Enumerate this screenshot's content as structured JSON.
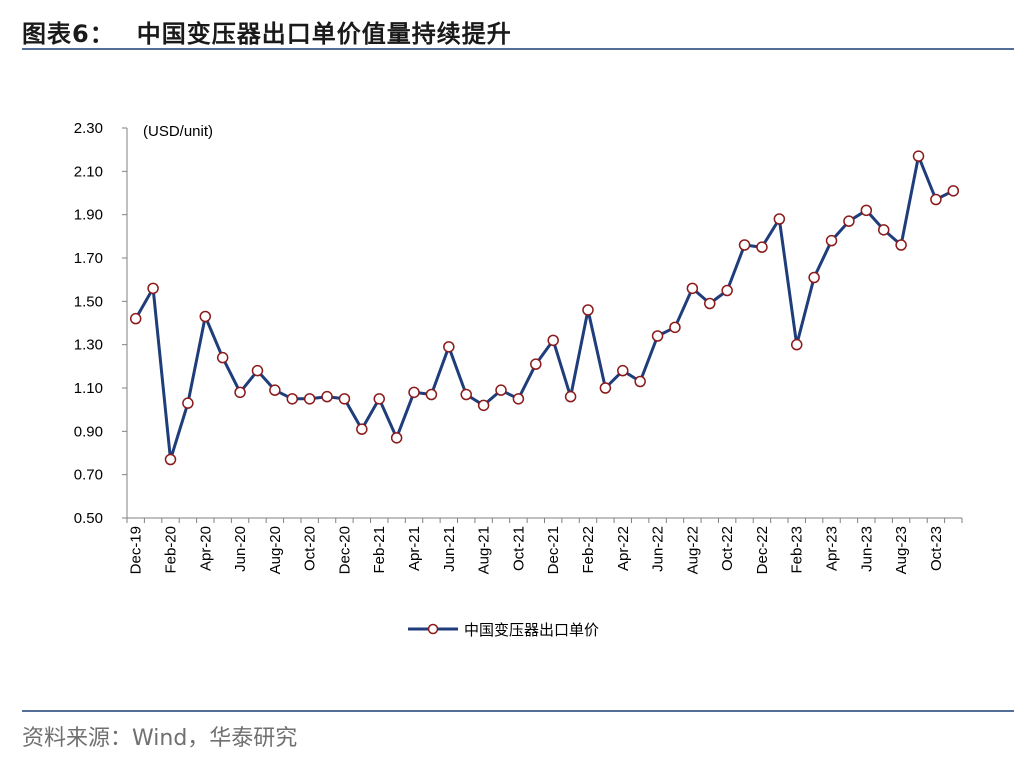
{
  "header": {
    "figure_label": "图表6：",
    "title": "中国变压器出口单价值量持续提升"
  },
  "source": "资料来源：Wind，华泰研究",
  "colors": {
    "line": "#1f3d7a",
    "marker_fill": "#ffffff",
    "marker_stroke": "#8b1a1a",
    "rule": "#556e97"
  },
  "chart_data": {
    "type": "line",
    "unit_label": "(USD/unit)",
    "ylim": [
      0.5,
      2.3
    ],
    "yticks": [
      "2.30",
      "2.10",
      "1.90",
      "1.70",
      "1.50",
      "1.30",
      "1.10",
      "0.90",
      "0.70",
      "0.50"
    ],
    "grid": false,
    "legend_position": "bottom",
    "x": [
      "Dec-19",
      "Jan-20",
      "Feb-20",
      "Mar-20",
      "Apr-20",
      "May-20",
      "Jun-20",
      "Jul-20",
      "Aug-20",
      "Sep-20",
      "Oct-20",
      "Nov-20",
      "Dec-20",
      "Jan-21",
      "Feb-21",
      "Mar-21",
      "Apr-21",
      "May-21",
      "Jun-21",
      "Jul-21",
      "Aug-21",
      "Sep-21",
      "Oct-21",
      "Nov-21",
      "Dec-21",
      "Jan-22",
      "Feb-22",
      "Mar-22",
      "Apr-22",
      "May-22",
      "Jun-22",
      "Jul-22",
      "Aug-22",
      "Sep-22",
      "Oct-22",
      "Nov-22",
      "Dec-22",
      "Jan-23",
      "Feb-23",
      "Mar-23",
      "Apr-23",
      "May-23",
      "Jun-23",
      "Jul-23",
      "Aug-23",
      "Sep-23",
      "Oct-23",
      "Nov-23"
    ],
    "xtick_labels": [
      "Dec-19",
      "Feb-20",
      "Apr-20",
      "Jun-20",
      "Aug-20",
      "Oct-20",
      "Dec-20",
      "Feb-21",
      "Apr-21",
      "Jun-21",
      "Aug-21",
      "Oct-21",
      "Dec-21",
      "Feb-22",
      "Apr-22",
      "Jun-22",
      "Aug-22",
      "Oct-22",
      "Dec-22",
      "Feb-23",
      "Apr-23",
      "Jun-23",
      "Aug-23",
      "Oct-23"
    ],
    "series": [
      {
        "name": "中国变压器出口单价",
        "values": [
          1.42,
          1.56,
          0.77,
          1.03,
          1.43,
          1.24,
          1.08,
          1.18,
          1.09,
          1.05,
          1.05,
          1.06,
          1.05,
          0.91,
          1.05,
          0.87,
          1.08,
          1.07,
          1.29,
          1.07,
          1.02,
          1.09,
          1.05,
          1.21,
          1.32,
          1.06,
          1.46,
          1.1,
          1.18,
          1.13,
          1.34,
          1.38,
          1.56,
          1.49,
          1.55,
          1.76,
          1.75,
          1.88,
          1.3,
          1.61,
          1.78,
          1.87,
          1.92,
          1.83,
          1.76,
          2.17,
          1.97,
          2.01
        ]
      }
    ]
  }
}
